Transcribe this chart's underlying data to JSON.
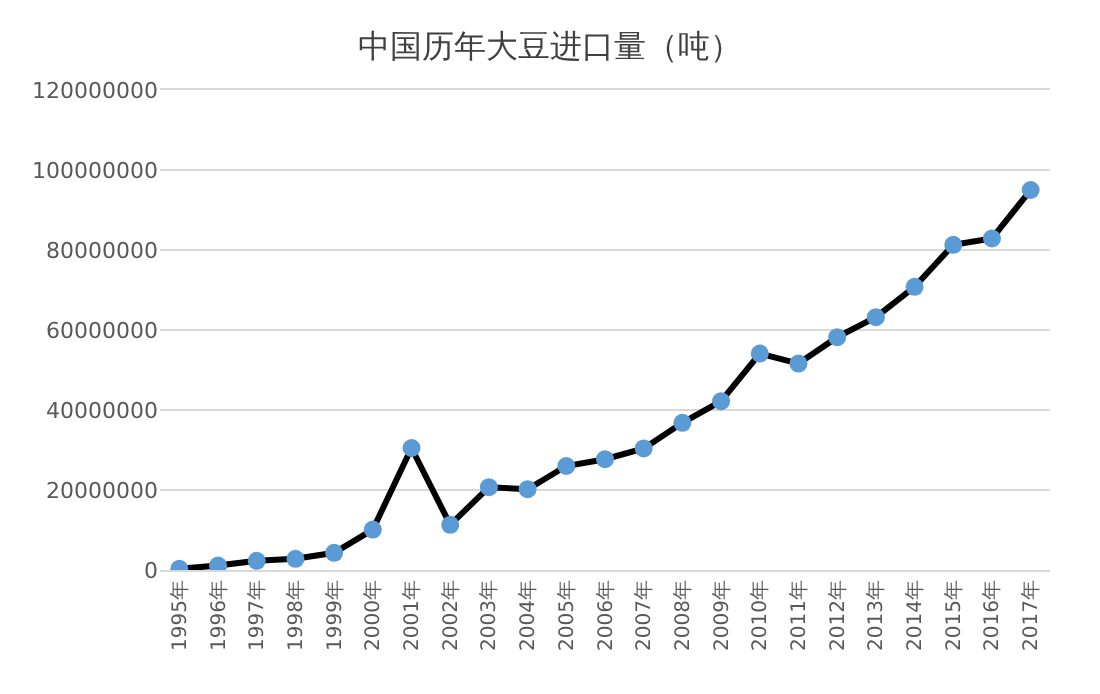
{
  "chart_data": {
    "type": "line",
    "title": "中国历年大豆进口量（吨）",
    "categories": [
      "1995年",
      "1996年",
      "1997年",
      "1998年",
      "1999年",
      "2000年",
      "2001年",
      "2002年",
      "2003年",
      "2004年",
      "2005年",
      "2006年",
      "2007年",
      "2008年",
      "2009年",
      "2010年",
      "2011年",
      "2012年",
      "2013年",
      "2014年",
      "2015年",
      "2016年",
      "2017年"
    ],
    "series": [
      {
        "color": "#000000",
        "colors": [
          "#5b9bd5",
          "#5b9bd5",
          "#5b9bd5",
          "#5b9bd5",
          "#5b9bd5",
          "#5b9bd5",
          "#5b9bd5",
          "#5b9bd5",
          "#5b9bd5",
          "#5b9bd5",
          "#5b9bd5",
          "#5b9bd5",
          "#5b9bd5",
          "#5b9bd5",
          "#5b9bd5",
          "#5b9bd5",
          "#5b9bd5",
          "#5b9bd5",
          "#5b9bd5",
          "#5b9bd5",
          "#5b9bd5",
          "#5b9bd5",
          "#5b9bd5"
        ],
        "values": [
          300000,
          1100000,
          2300000,
          2800000,
          4300000,
          10100000,
          30500000,
          11300000,
          20700000,
          20200000,
          26000000,
          27700000,
          30400000,
          36800000,
          42200000,
          54100000,
          51600000,
          58200000,
          63200000,
          70800000,
          81300000,
          82900000,
          95000000
        ]
      }
    ],
    "ylim": [
      0,
      120000000
    ],
    "yticks": [
      0,
      20000000,
      40000000,
      60000000,
      80000000,
      100000000,
      120000000
    ],
    "grid": "y",
    "marker": "circle",
    "line_style": "solid"
  }
}
